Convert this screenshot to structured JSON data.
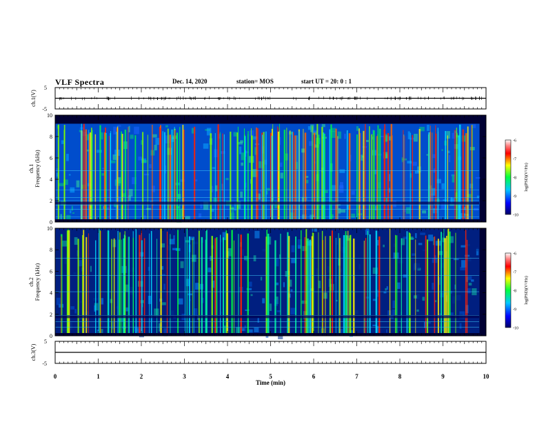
{
  "header": {
    "title": "VLF Spectra",
    "date": "Dec. 14, 2020",
    "station": "station= MOS",
    "start_ut": "start UT =  20: 0  : 1"
  },
  "colors": {
    "background": "#ffffff",
    "axis": "#000000",
    "spectrogram_low": "#000033",
    "spectrogram_high": "#ff0000"
  },
  "chart_data": [
    {
      "type": "line",
      "panel": "ch1",
      "ylabel": "ch.1(V)",
      "ylim": [
        -5,
        5
      ],
      "yticks": [
        "5",
        "-5"
      ],
      "xlim": [
        0,
        10
      ],
      "series": [
        {
          "x": [
            0,
            10
          ],
          "values": [
            0,
            0
          ]
        }
      ]
    },
    {
      "type": "heatmap",
      "panel": "ch1-spectrogram",
      "ylabel_top": "ch.1",
      "ylabel": "Frequency (kHz)",
      "ylim": [
        0,
        10
      ],
      "yticks": [
        "0",
        "2",
        "4",
        "6",
        "8",
        "10"
      ],
      "xlim": [
        0,
        10
      ],
      "band_top_khz": 9.2,
      "colorbar": {
        "label": "log(PSD)(V²/Hz)",
        "min": -10,
        "max": -6,
        "ticks": [
          "-6",
          "-7",
          "-8",
          "-9",
          "-10"
        ]
      }
    },
    {
      "type": "heatmap",
      "panel": "ch2-spectrogram",
      "ylabel_top": "ch.2",
      "ylabel": "Frequency (kHz)",
      "ylim": [
        0,
        10
      ],
      "yticks": [
        "0",
        "2",
        "4",
        "6",
        "8",
        "10"
      ],
      "xlim": [
        0,
        10
      ],
      "band_top_khz": 10.0,
      "colorbar": {
        "label": "log(PSD)(V²/Hz)",
        "min": -10,
        "max": -6,
        "ticks": [
          "-6",
          "-7",
          "-8",
          "-9",
          "-10"
        ]
      }
    },
    {
      "type": "line",
      "panel": "ch3",
      "ylabel": "ch.3(V)",
      "ylim": [
        -5,
        5
      ],
      "yticks": [
        "5",
        "-5"
      ],
      "xlim": [
        0,
        10
      ],
      "series": [
        {
          "x": [
            0,
            10
          ],
          "values": [
            0,
            0
          ]
        }
      ]
    }
  ],
  "xaxis": {
    "label": "Time (min)",
    "ticks": [
      "0",
      "1",
      "2",
      "3",
      "4",
      "5",
      "6",
      "7",
      "8",
      "9",
      "10"
    ]
  }
}
